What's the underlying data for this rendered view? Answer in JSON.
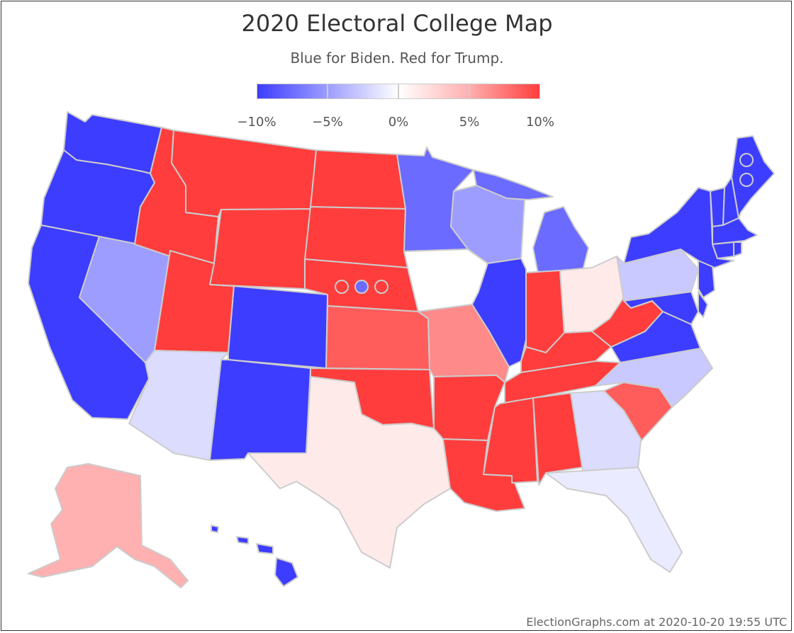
{
  "title": "2020 Electoral College Map",
  "subtitle": "Blue for Biden. Red for Trump.",
  "footer": "ElectionGraphs.com at 2020-10-20 19:55 UTC",
  "colors": {
    "solid_biden": "#3d3dff",
    "strong_biden": "#6b6bff",
    "lean_biden": "#9d9dff",
    "tilt_biden": "#c9c9ff",
    "tossup_biden": "#dcdcff",
    "edge_biden": "#ebebff",
    "even": "#ffffff",
    "edge_trump": "#ffeaea",
    "tilt_trump": "#ffb0b0",
    "lean_trump": "#ff8a8a",
    "strong_trump": "#ff5c5c",
    "solid_trump": "#ff3d3d",
    "border": "#cccccc"
  },
  "legend": {
    "ticks": [
      {
        "label": "−10%",
        "value": -10
      },
      {
        "label": "−5%",
        "value": -5
      },
      {
        "label": "0%",
        "value": 0
      },
      {
        "label": "5%",
        "value": 5
      },
      {
        "label": "10%",
        "value": 10
      }
    ]
  }
}
